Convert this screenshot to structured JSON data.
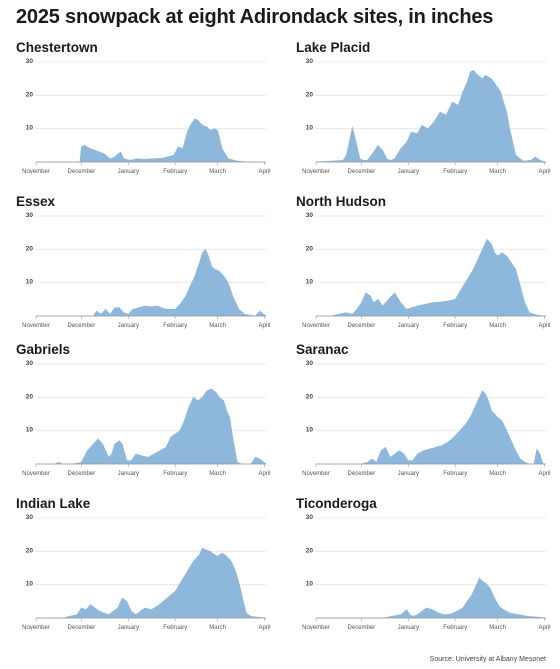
{
  "title": "2025 snowpack at eight Adirondack sites, in inches",
  "source": "Source: University at Albany Mesonet",
  "colors": {
    "area": "#8db8dc",
    "grid": "#e3e3e3",
    "axis": "#9a9a9a"
  },
  "chart_data": [
    {
      "type": "area",
      "title": "Chestertown",
      "x_ticks": [
        "November",
        "December",
        "January",
        "February",
        "March",
        "April"
      ],
      "x_tick_positions": [
        0,
        30,
        61,
        92,
        120,
        151
      ],
      "ylim": [
        0,
        30
      ],
      "y_ticks": [
        10,
        20,
        30
      ],
      "x": [
        0,
        29,
        30,
        32,
        36,
        41,
        45,
        49,
        52,
        56,
        58,
        62,
        67,
        72,
        77,
        84,
        91,
        94,
        97,
        100,
        102,
        105,
        107,
        110,
        113,
        115,
        118,
        120,
        123,
        127,
        133,
        140,
        152
      ],
      "values": [
        0,
        0,
        4.5,
        5,
        4,
        3.2,
        2.5,
        1,
        1.5,
        3,
        1,
        0.5,
        1,
        0.8,
        1,
        1.2,
        2,
        4.5,
        4,
        9,
        11,
        13,
        12.5,
        11,
        10.5,
        9.5,
        10,
        9.5,
        4,
        1,
        0.3,
        0,
        0
      ]
    },
    {
      "type": "area",
      "title": "Lake Placid",
      "x_ticks": [
        "November",
        "December",
        "January",
        "February",
        "March",
        "April"
      ],
      "x_tick_positions": [
        0,
        30,
        61,
        92,
        120,
        151
      ],
      "ylim": [
        0,
        30
      ],
      "y_ticks": [
        10,
        20,
        30
      ],
      "x": [
        0,
        18,
        20,
        22,
        24,
        26,
        29,
        31,
        34,
        38,
        41,
        44,
        47,
        50,
        52,
        56,
        60,
        63,
        67,
        70,
        74,
        78,
        82,
        86,
        90,
        94,
        97,
        100,
        102,
        104,
        107,
        110,
        112,
        116,
        119,
        122,
        124,
        126,
        128,
        132,
        137,
        142,
        145,
        148,
        152
      ],
      "values": [
        0,
        0.5,
        2,
        6,
        10.5,
        7,
        1,
        0.5,
        0.5,
        3,
        5,
        3.5,
        0.8,
        0.5,
        1,
        4,
        6,
        9,
        8.5,
        11,
        10,
        12,
        15,
        14,
        18,
        17,
        21,
        24,
        27,
        27.5,
        26,
        25,
        26,
        25,
        23,
        21,
        18,
        15,
        10,
        2,
        0.3,
        0.5,
        1.5,
        0.5,
        0
      ]
    },
    {
      "type": "area",
      "title": "Essex",
      "x_ticks": [
        "November",
        "December",
        "January",
        "February",
        "March",
        "April"
      ],
      "x_tick_positions": [
        0,
        30,
        61,
        92,
        120,
        151
      ],
      "ylim": [
        0,
        30
      ],
      "y_ticks": [
        10,
        20,
        30
      ],
      "x": [
        0,
        38,
        40,
        43,
        46,
        49,
        52,
        55,
        58,
        61,
        64,
        68,
        72,
        76,
        80,
        86,
        92,
        96,
        99,
        102,
        105,
        108,
        110,
        112,
        114,
        116,
        118,
        121,
        124,
        127,
        130,
        134,
        138,
        145,
        148,
        152
      ],
      "values": [
        0,
        0,
        1.5,
        0.5,
        2,
        0.5,
        2.5,
        2.5,
        1,
        0.5,
        2,
        2.5,
        3,
        2.8,
        3,
        2,
        2,
        4,
        6,
        9,
        12,
        16,
        19,
        20,
        18,
        15,
        14,
        13.5,
        12,
        10,
        6,
        2,
        0.5,
        0,
        1.5,
        0
      ]
    },
    {
      "type": "area",
      "title": "North Hudson",
      "x_ticks": [
        "November",
        "December",
        "January",
        "February",
        "March",
        "April"
      ],
      "x_tick_positions": [
        0,
        30,
        61,
        92,
        120,
        151
      ],
      "ylim": [
        0,
        30
      ],
      "y_ticks": [
        10,
        20,
        30
      ],
      "x": [
        0,
        10,
        15,
        20,
        24,
        27,
        30,
        33,
        36,
        38,
        41,
        44,
        48,
        52,
        56,
        60,
        63,
        67,
        72,
        77,
        82,
        87,
        92,
        96,
        100,
        104,
        108,
        111,
        113,
        116,
        118,
        120,
        123,
        126,
        129,
        132,
        135,
        138,
        141,
        146,
        152
      ],
      "values": [
        0,
        0,
        0.5,
        1,
        0.5,
        2,
        4,
        7,
        6,
        4,
        5,
        3,
        5,
        7,
        4,
        2,
        2.5,
        3,
        3.5,
        4,
        4.2,
        4.5,
        5,
        8,
        11,
        14,
        18,
        21,
        23,
        21.5,
        19,
        18,
        19,
        18,
        16,
        14,
        9,
        4,
        1,
        0.3,
        0
      ]
    },
    {
      "type": "area",
      "title": "Gabriels",
      "x_ticks": [
        "November",
        "December",
        "January",
        "February",
        "March",
        "April"
      ],
      "x_tick_positions": [
        0,
        30,
        61,
        92,
        120,
        151
      ],
      "ylim": [
        0,
        30
      ],
      "y_ticks": [
        10,
        20,
        30
      ],
      "x": [
        0,
        12,
        15,
        18,
        24,
        30,
        34,
        38,
        41,
        44,
        48,
        50,
        52,
        55,
        57,
        60,
        63,
        66,
        70,
        74,
        78,
        82,
        86,
        89,
        92,
        95,
        98,
        101,
        104,
        107,
        110,
        113,
        116,
        119,
        121,
        124,
        126,
        128,
        130,
        133,
        136,
        139,
        142,
        145,
        148,
        152
      ],
      "values": [
        0,
        0,
        0.5,
        0,
        0,
        0.5,
        4,
        6,
        7.5,
        6,
        2,
        3,
        6,
        7,
        6,
        1,
        1,
        3,
        2.5,
        2,
        3,
        4,
        5,
        8,
        9,
        10,
        13,
        17,
        20,
        19,
        20,
        22,
        22.5,
        21.5,
        20,
        19,
        16,
        14,
        8,
        0.5,
        0,
        0,
        0,
        2,
        1.5,
        0
      ]
    },
    {
      "type": "area",
      "title": "Saranac",
      "x_ticks": [
        "November",
        "December",
        "January",
        "February",
        "March",
        "April"
      ],
      "x_tick_positions": [
        0,
        30,
        61,
        92,
        120,
        151
      ],
      "ylim": [
        0,
        30
      ],
      "y_ticks": [
        10,
        20,
        30
      ],
      "x": [
        0,
        30,
        34,
        37,
        40,
        43,
        46,
        49,
        52,
        55,
        58,
        61,
        64,
        67,
        71,
        75,
        79,
        83,
        87,
        91,
        95,
        99,
        102,
        105,
        108,
        110,
        112,
        114,
        116,
        118,
        120,
        123,
        126,
        129,
        132,
        135,
        138,
        141,
        144,
        146,
        148,
        150,
        152
      ],
      "values": [
        0,
        0,
        0.5,
        1.5,
        0.5,
        4,
        5,
        2,
        3,
        4,
        3,
        1,
        1,
        3,
        4,
        4.5,
        5,
        5.5,
        6.5,
        8,
        10,
        12,
        14,
        17,
        20,
        22,
        21,
        19,
        16,
        15,
        14,
        13,
        10,
        7,
        4,
        1.5,
        0.5,
        0,
        0,
        4.5,
        3,
        0,
        0
      ]
    },
    {
      "type": "area",
      "title": "Indian Lake",
      "x_ticks": [
        "November",
        "December",
        "January",
        "February",
        "March",
        "April"
      ],
      "x_tick_positions": [
        0,
        30,
        61,
        92,
        120,
        151
      ],
      "ylim": [
        0,
        30
      ],
      "y_ticks": [
        10,
        20,
        30
      ],
      "x": [
        0,
        18,
        22,
        27,
        30,
        33,
        36,
        39,
        42,
        45,
        48,
        51,
        54,
        57,
        60,
        63,
        66,
        69,
        72,
        76,
        80,
        84,
        88,
        92,
        96,
        100,
        104,
        108,
        110,
        112,
        115,
        118,
        120,
        123,
        126,
        129,
        132,
        135,
        137,
        139,
        142,
        146,
        152
      ],
      "values": [
        0,
        0,
        0.5,
        1,
        3,
        2.5,
        4,
        3,
        2,
        1.5,
        1,
        2,
        3,
        6,
        5,
        2,
        1,
        2,
        3,
        2.5,
        3.5,
        5,
        6.5,
        8,
        11,
        14,
        17,
        19,
        21,
        20.5,
        20,
        19,
        18.5,
        19.5,
        18.5,
        17,
        14,
        9,
        5,
        1.5,
        0.5,
        0.3,
        0
      ]
    },
    {
      "type": "area",
      "title": "Ticonderoga",
      "x_ticks": [
        "November",
        "December",
        "January",
        "February",
        "March",
        "April"
      ],
      "x_tick_positions": [
        0,
        30,
        61,
        92,
        120,
        151
      ],
      "ylim": [
        0,
        30
      ],
      "y_ticks": [
        10,
        20,
        30
      ],
      "x": [
        0,
        45,
        50,
        56,
        60,
        62,
        64,
        67,
        70,
        73,
        77,
        81,
        85,
        89,
        93,
        97,
        100,
        103,
        106,
        108,
        110,
        112,
        115,
        118,
        121,
        124,
        128,
        134,
        140,
        146,
        152
      ],
      "values": [
        0,
        0,
        0.5,
        1,
        2.5,
        1,
        0.5,
        1,
        2,
        3,
        2.5,
        1.5,
        1,
        1.2,
        2,
        3,
        5,
        7,
        10,
        12,
        11,
        10.5,
        9,
        6,
        3.5,
        2.5,
        1.5,
        1,
        0.5,
        0.3,
        0
      ]
    }
  ]
}
